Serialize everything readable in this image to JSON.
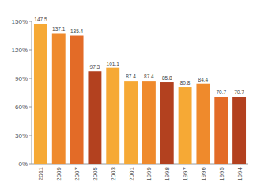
{
  "chart_data": {
    "type": "bar",
    "categories": [
      "2011",
      "2009",
      "2007",
      "2005",
      "2003",
      "2001",
      "1999",
      "1998",
      "1997",
      "1996",
      "1995",
      "1994"
    ],
    "values": [
      147.5,
      137.1,
      135.4,
      97.3,
      101.1,
      87.4,
      87.4,
      85.8,
      80.8,
      84.4,
      70.7,
      70.7
    ],
    "colors": [
      "#f6a935",
      "#ef8a2c",
      "#e36b27",
      "#b3411f",
      "#f6a935",
      "#f6a935",
      "#ef8a2c",
      "#b3411f",
      "#f6a935",
      "#ef8a2c",
      "#e36b27",
      "#b3411f"
    ],
    "ylim": [
      0,
      150
    ],
    "yticks": [
      {
        "value": 0,
        "label": "0%"
      },
      {
        "value": 30,
        "label": "30%"
      },
      {
        "value": 60,
        "label": "60%"
      },
      {
        "value": 90,
        "label": "90%"
      },
      {
        "value": 120,
        "label": "120%"
      },
      {
        "value": 150,
        "label": "150%"
      }
    ],
    "grid": false,
    "data_labels": true
  }
}
